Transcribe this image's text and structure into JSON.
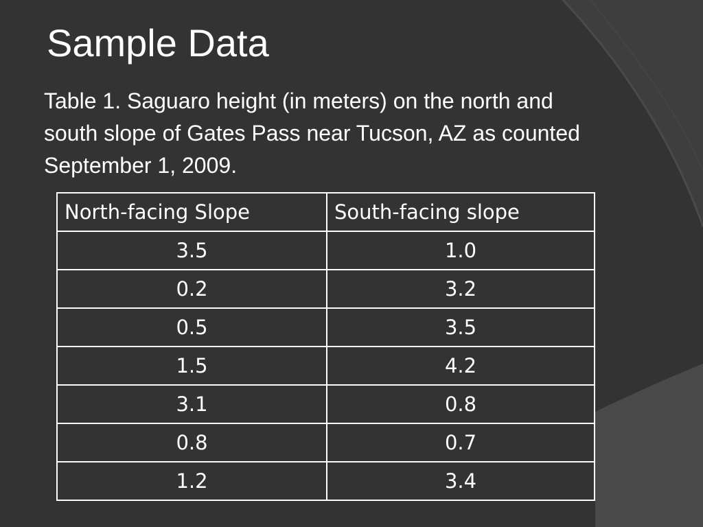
{
  "header": {
    "title": "Sample Data",
    "caption": "Table 1. Saguaro height (in meters) on the north and south slope of Gates Pass near Tucson, AZ as counted September 1, 2009."
  },
  "table": {
    "columns": [
      "North-facing Slope",
      "South-facing slope"
    ],
    "rows": [
      [
        "3.5",
        "1.0"
      ],
      [
        "0.2",
        "3.2"
      ],
      [
        "0.5",
        "3.5"
      ],
      [
        "1.5",
        "4.2"
      ],
      [
        "3.1",
        "0.8"
      ],
      [
        "0.8",
        "0.7"
      ],
      [
        "1.2",
        "3.4"
      ]
    ]
  }
}
